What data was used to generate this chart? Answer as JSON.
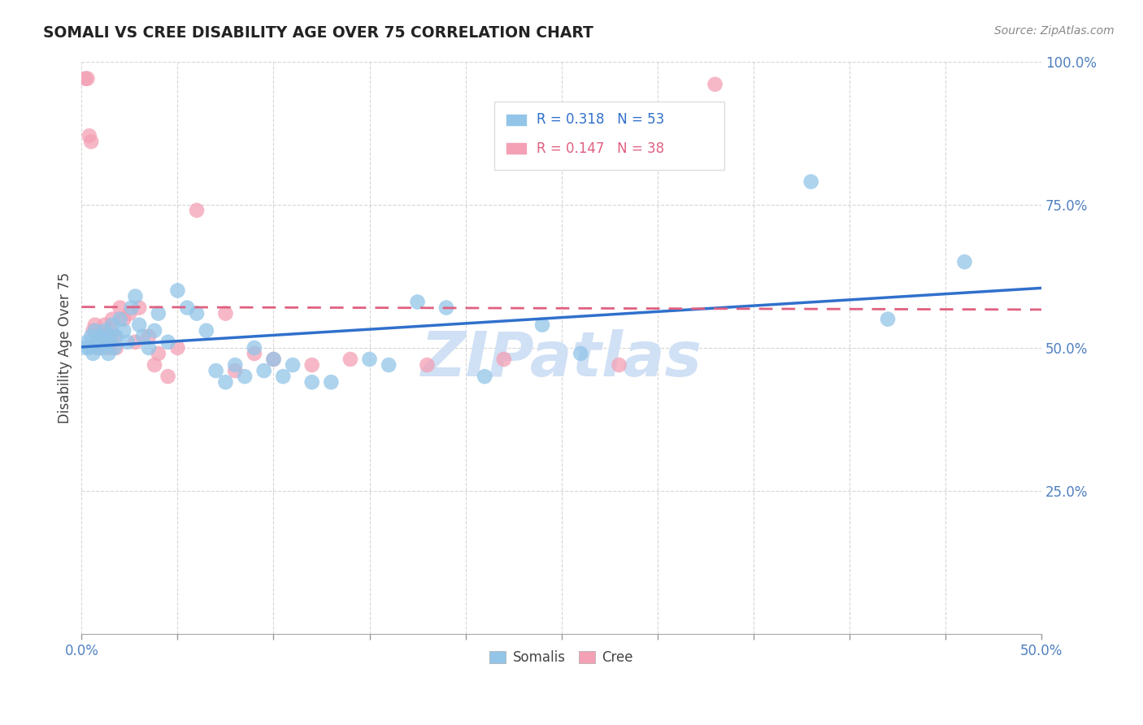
{
  "title": "SOMALI VS CREE DISABILITY AGE OVER 75 CORRELATION CHART",
  "source": "Source: ZipAtlas.com",
  "ylabel": "Disability Age Over 75",
  "xlim": [
    0.0,
    0.5
  ],
  "ylim": [
    0.0,
    1.0
  ],
  "xticks": [
    0.0,
    0.05,
    0.1,
    0.15,
    0.2,
    0.25,
    0.3,
    0.35,
    0.4,
    0.45,
    0.5
  ],
  "xtick_labels_show": [
    0.0,
    0.5
  ],
  "yticks": [
    0.0,
    0.25,
    0.5,
    0.75,
    1.0
  ],
  "ytick_labels": [
    "",
    "25.0%",
    "50.0%",
    "75.0%",
    "100.0%"
  ],
  "somali_R": 0.318,
  "somali_N": 53,
  "cree_R": 0.147,
  "cree_N": 38,
  "somali_color": "#92C5E8",
  "cree_color": "#F4A0B5",
  "somali_line_color": "#3070CC",
  "cree_line_color": "#E06080",
  "watermark": "ZIPatlas",
  "watermark_color": "#C8D8F0",
  "somali_x": [
    0.002,
    0.003,
    0.004,
    0.005,
    0.006,
    0.007,
    0.008,
    0.009,
    0.01,
    0.011,
    0.012,
    0.013,
    0.014,
    0.015,
    0.016,
    0.017,
    0.018,
    0.02,
    0.022,
    0.024,
    0.026,
    0.028,
    0.03,
    0.032,
    0.035,
    0.038,
    0.04,
    0.045,
    0.05,
    0.055,
    0.06,
    0.065,
    0.07,
    0.075,
    0.08,
    0.085,
    0.09,
    0.095,
    0.1,
    0.105,
    0.11,
    0.12,
    0.13,
    0.15,
    0.16,
    0.175,
    0.19,
    0.21,
    0.24,
    0.26,
    0.38,
    0.42,
    0.46
  ],
  "somali_y": [
    0.5,
    0.51,
    0.5,
    0.52,
    0.49,
    0.53,
    0.5,
    0.51,
    0.52,
    0.5,
    0.53,
    0.51,
    0.49,
    0.52,
    0.54,
    0.5,
    0.52,
    0.55,
    0.53,
    0.51,
    0.57,
    0.59,
    0.54,
    0.52,
    0.5,
    0.53,
    0.56,
    0.51,
    0.6,
    0.57,
    0.56,
    0.53,
    0.46,
    0.44,
    0.47,
    0.45,
    0.5,
    0.46,
    0.48,
    0.45,
    0.47,
    0.44,
    0.44,
    0.48,
    0.47,
    0.58,
    0.57,
    0.45,
    0.54,
    0.49,
    0.79,
    0.55,
    0.65
  ],
  "cree_x": [
    0.002,
    0.003,
    0.004,
    0.005,
    0.006,
    0.007,
    0.008,
    0.009,
    0.01,
    0.011,
    0.012,
    0.013,
    0.014,
    0.015,
    0.016,
    0.017,
    0.018,
    0.02,
    0.022,
    0.025,
    0.028,
    0.03,
    0.035,
    0.038,
    0.04,
    0.045,
    0.05,
    0.06,
    0.075,
    0.08,
    0.09,
    0.1,
    0.12,
    0.14,
    0.18,
    0.22,
    0.28,
    0.33
  ],
  "cree_y": [
    0.97,
    0.97,
    0.87,
    0.86,
    0.53,
    0.54,
    0.51,
    0.5,
    0.52,
    0.51,
    0.54,
    0.52,
    0.5,
    0.53,
    0.55,
    0.52,
    0.5,
    0.57,
    0.55,
    0.56,
    0.51,
    0.57,
    0.52,
    0.47,
    0.49,
    0.45,
    0.5,
    0.74,
    0.56,
    0.46,
    0.49,
    0.48,
    0.47,
    0.48,
    0.47,
    0.48,
    0.47,
    0.96
  ]
}
